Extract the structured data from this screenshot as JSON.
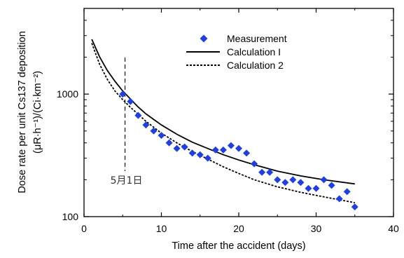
{
  "chart_data": {
    "type": "scatter",
    "xlabel": "Time after the accident (days)",
    "ylabel_line1": "Dose rate per unit Cs137 deposition",
    "ylabel_line2": "(μR·h⁻¹)/(Ci·km⁻²)",
    "xlim": [
      0,
      40
    ],
    "ylim": [
      100,
      5000
    ],
    "yscale": "log",
    "x_ticks": [
      0,
      10,
      20,
      30,
      40
    ],
    "x_tick_labels": [
      "0",
      "10",
      "20",
      "30",
      "40"
    ],
    "y_ticks": [
      100,
      1000
    ],
    "y_tick_labels": [
      "100",
      "1000"
    ],
    "grid": false,
    "legend_position": "top-right",
    "annotation": {
      "x": 5.3,
      "label": "5月1日"
    },
    "series": [
      {
        "name": "Measurement",
        "kind": "points",
        "color": "#1f3fe0",
        "marker": "diamond",
        "x": [
          5,
          6,
          7,
          8,
          9,
          10,
          11,
          12,
          13,
          14,
          15,
          16,
          17,
          18,
          19,
          20,
          21,
          22,
          23,
          24,
          25,
          26,
          27,
          28,
          29,
          30,
          31,
          32,
          33,
          34,
          35
        ],
        "y": [
          1000,
          870,
          670,
          560,
          500,
          460,
          400,
          360,
          370,
          330,
          320,
          300,
          350,
          350,
          380,
          360,
          330,
          270,
          230,
          230,
          200,
          190,
          200,
          190,
          170,
          170,
          200,
          180,
          140,
          160,
          120
        ]
      },
      {
        "name": "Calculation I",
        "kind": "line",
        "style": "solid",
        "color": "#000000",
        "x": [
          1,
          2,
          3,
          4,
          5,
          6,
          7,
          8,
          10,
          12,
          14,
          16,
          18,
          20,
          22,
          25,
          28,
          31,
          35
        ],
        "y": [
          2800,
          2020,
          1560,
          1270,
          1060,
          910,
          785,
          690,
          560,
          470,
          405,
          360,
          320,
          290,
          265,
          235,
          215,
          200,
          185
        ]
      },
      {
        "name": "Calculation 2",
        "kind": "line",
        "style": "dotted",
        "color": "#000000",
        "x": [
          1,
          2,
          3,
          4,
          5,
          6,
          7,
          8,
          10,
          12,
          14,
          16,
          18,
          20,
          22,
          25,
          28,
          31,
          35
        ],
        "y": [
          2600,
          1760,
          1320,
          1060,
          900,
          780,
          685,
          600,
          480,
          400,
          340,
          295,
          255,
          225,
          200,
          175,
          158,
          145,
          130
        ]
      }
    ]
  }
}
